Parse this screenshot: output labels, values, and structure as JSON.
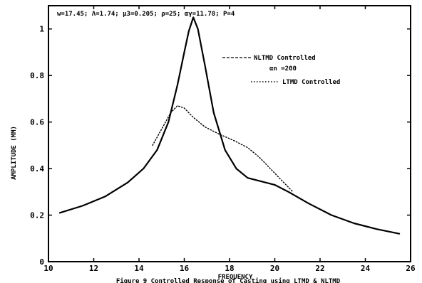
{
  "chart_data": {
    "type": "line",
    "title": "",
    "caption": "Figure 9 Controlled Response of Casting using LTMD & NLTMD",
    "params_text": "w=17.45; Λ=1.74; μ3=0.205; ρ=25; αγ=11.78; P=4",
    "xlabel": "FREQUENCY",
    "ylabel": "AMPLITUDE (MM)",
    "xlim": [
      10,
      26
    ],
    "ylim": [
      0,
      1.1
    ],
    "x_ticks": [
      10,
      12,
      14,
      16,
      18,
      20,
      22,
      24,
      26
    ],
    "x_tick_labels": [
      "10",
      "12",
      "14",
      "16",
      "18",
      "20",
      "22",
      "24",
      "26"
    ],
    "y_ticks": [
      0,
      0.2,
      0.4,
      0.6,
      0.8,
      1.0
    ],
    "y_tick_labels": [
      "0",
      "0.2",
      "0.4",
      "0.6",
      "0.8",
      "1"
    ],
    "grid": false,
    "legend": {
      "placement": "top-right",
      "entries": [
        "NLTMD Controlled",
        "αn =200",
        "LTMD Controlled"
      ]
    },
    "series": [
      {
        "name": "NLTMD Controlled",
        "style": "solid",
        "x": [
          10.5,
          11.5,
          12.5,
          13.5,
          14.2,
          14.8,
          15.3,
          15.7,
          16.0,
          16.2,
          16.4,
          16.6,
          16.9,
          17.3,
          17.8,
          18.3,
          18.8,
          19.4,
          20.0,
          20.6,
          21.5,
          22.5,
          23.5,
          24.5,
          25.5
        ],
        "y": [
          0.21,
          0.24,
          0.28,
          0.34,
          0.4,
          0.48,
          0.6,
          0.76,
          0.9,
          0.99,
          1.05,
          1.0,
          0.85,
          0.64,
          0.48,
          0.4,
          0.36,
          0.345,
          0.33,
          0.3,
          0.25,
          0.2,
          0.165,
          0.14,
          0.12
        ]
      },
      {
        "name": "LTMD Controlled",
        "style": "dotted",
        "x": [
          14.6,
          15.0,
          15.4,
          15.7,
          16.0,
          16.4,
          16.9,
          17.5,
          18.2,
          18.8,
          19.3,
          19.8,
          20.3,
          20.8
        ],
        "y": [
          0.5,
          0.57,
          0.64,
          0.67,
          0.66,
          0.62,
          0.58,
          0.55,
          0.52,
          0.49,
          0.45,
          0.4,
          0.35,
          0.3
        ]
      }
    ]
  }
}
